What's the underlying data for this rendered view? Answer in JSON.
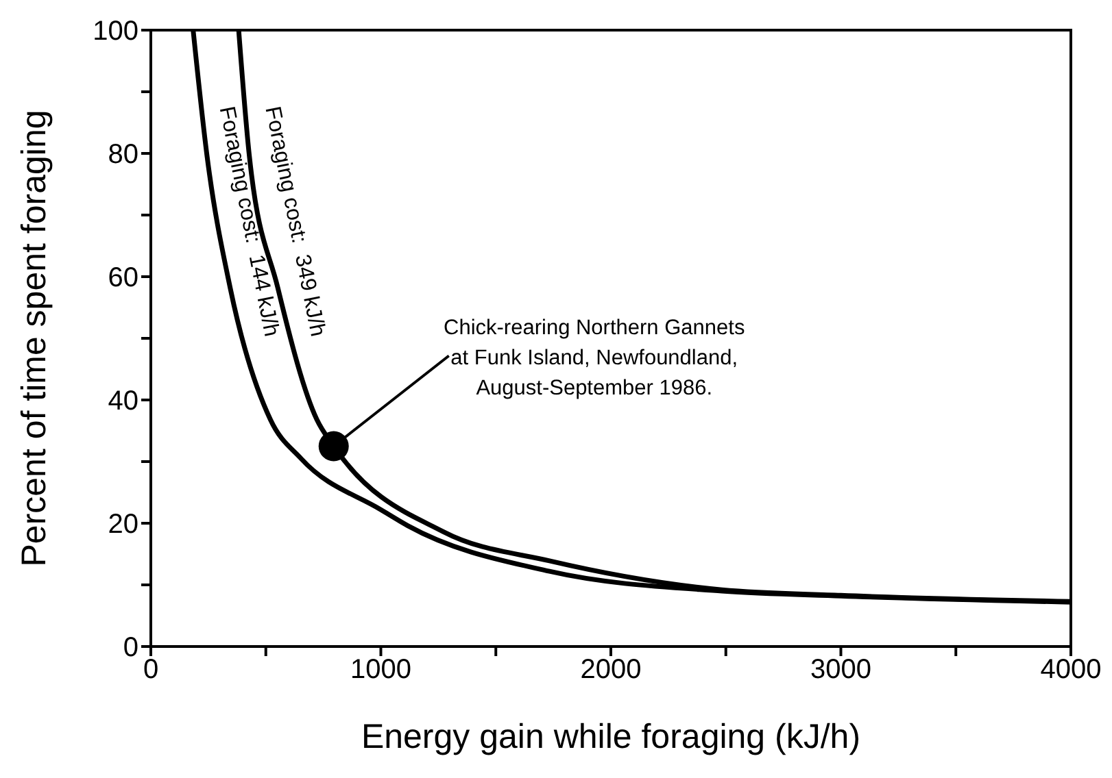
{
  "chart_data": {
    "type": "line",
    "xlabel": "Energy gain while foraging (kJ/h)",
    "ylabel": "Percent of time spent foraging",
    "xlim": [
      0,
      4000
    ],
    "xticks": [
      0,
      {
        "value": 500,
        "label": null
      },
      1000,
      {
        "value": 1500,
        "label": null
      },
      2000,
      {
        "value": 2500,
        "label": null
      },
      3000,
      {
        "value": 3500,
        "label": null
      },
      4000
    ],
    "ylim": [
      0,
      100
    ],
    "yticks": [
      0,
      {
        "value": 10,
        "label": null
      },
      20,
      {
        "value": 30,
        "label": null
      },
      40,
      {
        "value": 50,
        "label": null
      },
      60,
      {
        "value": 70,
        "label": null
      },
      80,
      {
        "value": 90,
        "label": null
      },
      100
    ],
    "grid": false,
    "legend": false,
    "marker": "none",
    "line_style": "solid",
    "series": [
      {
        "name": "Foraging cost:  144 kJ/h",
        "color": "#000000",
        "x": [
          184,
          244,
          345,
          520,
          653,
          1000,
          1117,
          1733,
          2483,
          3000,
          4000
        ],
        "values": [
          100,
          79.7,
          58.2,
          36.8,
          30.5,
          22.2,
          19.6,
          12.2,
          9.0,
          8.2,
          7.2
        ]
      },
      {
        "name": "Foraging cost:  349 kJ/h",
        "color": "#000000",
        "x": [
          382,
          428,
          552,
          722,
          795,
          1273,
          1733,
          2483,
          3000,
          4000
        ],
        "values": [
          100,
          79.7,
          58.2,
          36.8,
          32.5,
          18.6,
          13.9,
          9.2,
          8.3,
          7.3
        ]
      },
      {
        "type": "scatter",
        "color": "#000000",
        "marker": "circle",
        "x": [
          795
        ],
        "values": [
          32.5
        ]
      }
    ],
    "annotations": [
      {
        "text": "Chick-rearing Northern Gannets\nat Funk Island, Newfoundland,\nAugust-September 1986.",
        "x": 795,
        "y": 32.5
      }
    ]
  }
}
